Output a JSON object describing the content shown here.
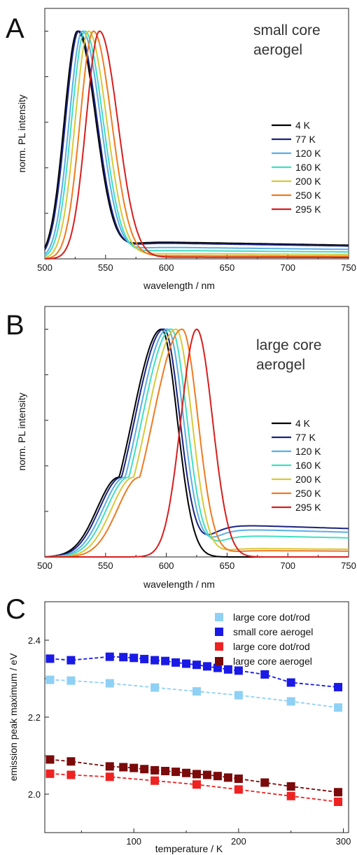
{
  "chart_data": [
    {
      "panel": "A",
      "type": "line",
      "annotation": [
        "small core",
        "aerogel"
      ],
      "xlabel": "wavelength / nm",
      "ylabel": "norm. PL intensity",
      "xlim": [
        500,
        750
      ],
      "ylim": [
        0,
        1.1
      ],
      "xticks": [
        "500",
        "550",
        "600",
        "650",
        "700",
        "750"
      ],
      "legend": "right",
      "series": [
        {
          "name": "4 K",
          "color": "#000000",
          "peak": 527,
          "wl": 11,
          "wr": 15,
          "tail": 0.08
        },
        {
          "name": "77 K",
          "color": "#1a237e",
          "peak": 528,
          "wl": 11,
          "wr": 15,
          "tail": 0.075
        },
        {
          "name": "120 K",
          "color": "#5aaee8",
          "peak": 531,
          "wl": 11,
          "wr": 15,
          "tail": 0.055
        },
        {
          "name": "160 K",
          "color": "#3fe0c0",
          "peak": 533,
          "wl": 11,
          "wr": 15,
          "tail": 0.04
        },
        {
          "name": "200 K",
          "color": "#d6c93a",
          "peak": 536,
          "wl": 11,
          "wr": 15,
          "tail": 0.025
        },
        {
          "name": "250 K",
          "color": "#ee7a22",
          "peak": 540,
          "wl": 11,
          "wr": 15,
          "tail": 0.015
        },
        {
          "name": "295 K",
          "color": "#d81e1e",
          "peak": 545,
          "wl": 11,
          "wr": 15,
          "tail": 0.008
        }
      ]
    },
    {
      "panel": "B",
      "type": "line",
      "annotation": [
        "large core",
        "aerogel"
      ],
      "xlabel": "wavelength / nm",
      "ylabel": "norm. PL intensity",
      "xlim": [
        500,
        750
      ],
      "ylim": [
        0,
        1.1
      ],
      "xticks": [
        "500",
        "550",
        "600",
        "650",
        "700",
        "750"
      ],
      "legend": "right",
      "series": [
        {
          "name": "4 K",
          "color": "#000000",
          "peak": 596,
          "wl": 24,
          "wr": 13,
          "tail": 0.0
        },
        {
          "name": "77 K",
          "color": "#1a237e",
          "peak": 598,
          "wl": 24,
          "wr": 13,
          "tail": 0.15
        },
        {
          "name": "120 K",
          "color": "#5aaee8",
          "peak": 601,
          "wl": 24,
          "wr": 13,
          "tail": 0.13
        },
        {
          "name": "160 K",
          "color": "#3fe0c0",
          "peak": 604,
          "wl": 24,
          "wr": 13,
          "tail": 0.1
        },
        {
          "name": "200 K",
          "color": "#d6c93a",
          "peak": 608,
          "wl": 24,
          "wr": 13,
          "tail": 0.04
        },
        {
          "name": "250 K",
          "color": "#ee7a22",
          "peak": 613,
          "wl": 24,
          "wr": 13,
          "tail": 0.03
        },
        {
          "name": "295 K",
          "color": "#d81e1e",
          "peak": 625,
          "wl": 13,
          "wr": 13,
          "tail": 0.0
        }
      ]
    },
    {
      "panel": "C",
      "type": "scatter",
      "xlabel": "temperature / K",
      "ylabel": "emission peak maximum / eV",
      "xlim": [
        15,
        305
      ],
      "ylim": [
        1.9,
        2.5
      ],
      "xticks": [
        100,
        200,
        300
      ],
      "yticks": [
        2.0,
        2.2,
        2.4
      ],
      "legend": "top-right",
      "series": [
        {
          "name": "large core dot/rod",
          "color": "#8fd0f5",
          "x": [
            20,
            40,
            77,
            120,
            160,
            200,
            250,
            295
          ],
          "y": [
            2.297,
            2.295,
            2.288,
            2.277,
            2.267,
            2.257,
            2.241,
            2.225
          ]
        },
        {
          "name": "small core aerogel",
          "color": "#1a1ae6",
          "x": [
            20,
            40,
            77,
            90,
            100,
            110,
            120,
            130,
            140,
            150,
            160,
            170,
            180,
            190,
            200,
            225,
            250,
            295
          ],
          "y": [
            2.352,
            2.348,
            2.357,
            2.356,
            2.354,
            2.351,
            2.348,
            2.346,
            2.342,
            2.339,
            2.336,
            2.332,
            2.328,
            2.324,
            2.321,
            2.311,
            2.29,
            2.278
          ]
        },
        {
          "name": "large core dot/rod",
          "color": "#ee2222",
          "x": [
            20,
            40,
            77,
            120,
            160,
            200,
            250,
            295
          ],
          "y": [
            2.053,
            2.05,
            2.045,
            2.035,
            2.025,
            2.012,
            1.995,
            1.98
          ]
        },
        {
          "name": "large core aerogel",
          "color": "#7b0a0a",
          "x": [
            20,
            40,
            77,
            90,
            100,
            110,
            120,
            130,
            140,
            150,
            160,
            170,
            180,
            190,
            200,
            225,
            250,
            295
          ],
          "y": [
            2.09,
            2.085,
            2.072,
            2.07,
            2.068,
            2.065,
            2.062,
            2.06,
            2.058,
            2.055,
            2.052,
            2.05,
            2.047,
            2.043,
            2.04,
            2.03,
            2.02,
            2.005
          ]
        }
      ]
    }
  ]
}
